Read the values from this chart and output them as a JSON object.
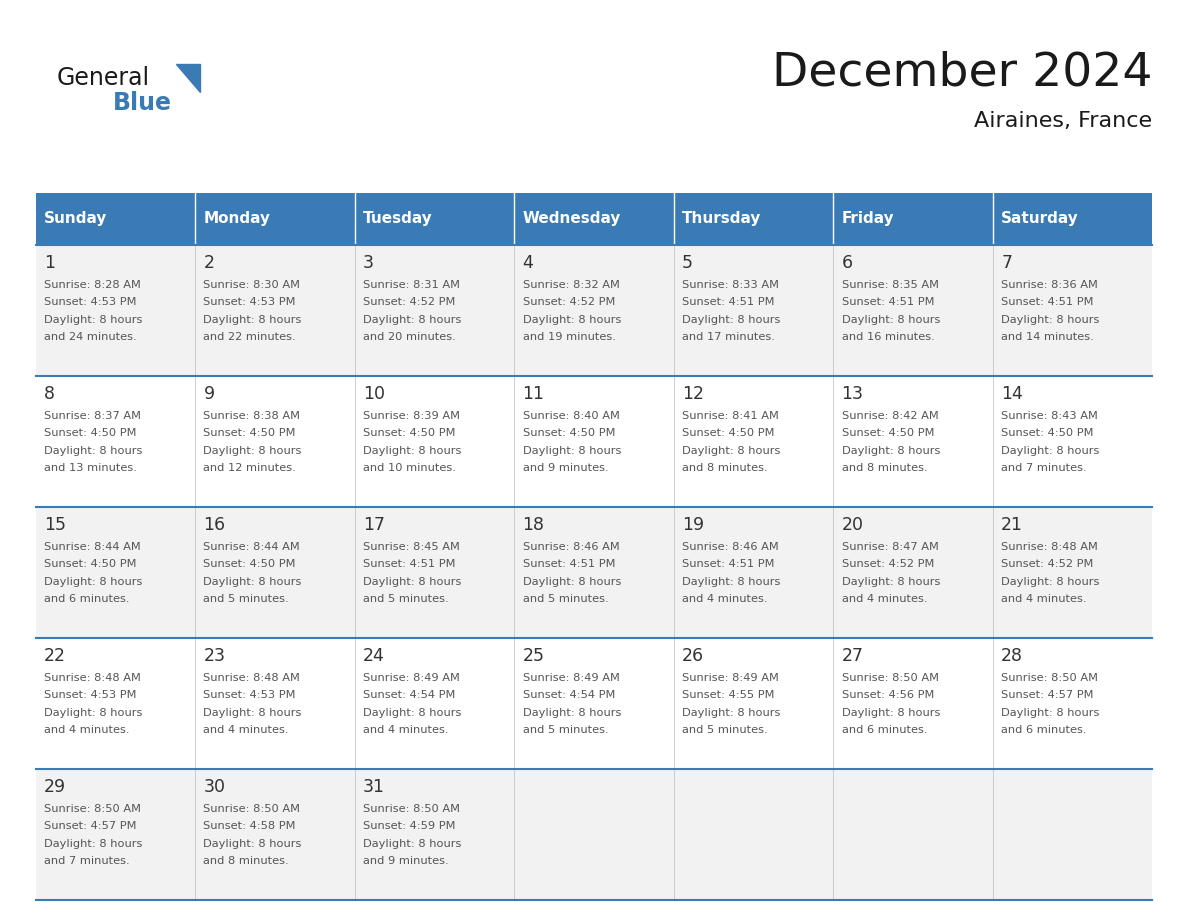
{
  "title": "December 2024",
  "subtitle": "Airaines, France",
  "days_of_week": [
    "Sunday",
    "Monday",
    "Tuesday",
    "Wednesday",
    "Thursday",
    "Friday",
    "Saturday"
  ],
  "header_bg_color": "#3a7ab5",
  "header_text_color": "#ffffff",
  "odd_row_bg": "#f2f2f2",
  "even_row_bg": "#ffffff",
  "line_color": "#3a7ab5",
  "day_num_color": "#333333",
  "cell_text_color": "#555555",
  "title_color": "#1a1a1a",
  "subtitle_color": "#1a1a1a",
  "logo_general_color": "#1a1a1a",
  "logo_blue_color": "#3a7ab5",
  "weeks": [
    {
      "days": [
        {
          "day": 1,
          "sunrise": "8:28 AM",
          "sunset": "4:53 PM",
          "daylight": "8 hours and 24 minutes."
        },
        {
          "day": 2,
          "sunrise": "8:30 AM",
          "sunset": "4:53 PM",
          "daylight": "8 hours and 22 minutes."
        },
        {
          "day": 3,
          "sunrise": "8:31 AM",
          "sunset": "4:52 PM",
          "daylight": "8 hours and 20 minutes."
        },
        {
          "day": 4,
          "sunrise": "8:32 AM",
          "sunset": "4:52 PM",
          "daylight": "8 hours and 19 minutes."
        },
        {
          "day": 5,
          "sunrise": "8:33 AM",
          "sunset": "4:51 PM",
          "daylight": "8 hours and 17 minutes."
        },
        {
          "day": 6,
          "sunrise": "8:35 AM",
          "sunset": "4:51 PM",
          "daylight": "8 hours and 16 minutes."
        },
        {
          "day": 7,
          "sunrise": "8:36 AM",
          "sunset": "4:51 PM",
          "daylight": "8 hours and 14 minutes."
        }
      ]
    },
    {
      "days": [
        {
          "day": 8,
          "sunrise": "8:37 AM",
          "sunset": "4:50 PM",
          "daylight": "8 hours and 13 minutes."
        },
        {
          "day": 9,
          "sunrise": "8:38 AM",
          "sunset": "4:50 PM",
          "daylight": "8 hours and 12 minutes."
        },
        {
          "day": 10,
          "sunrise": "8:39 AM",
          "sunset": "4:50 PM",
          "daylight": "8 hours and 10 minutes."
        },
        {
          "day": 11,
          "sunrise": "8:40 AM",
          "sunset": "4:50 PM",
          "daylight": "8 hours and 9 minutes."
        },
        {
          "day": 12,
          "sunrise": "8:41 AM",
          "sunset": "4:50 PM",
          "daylight": "8 hours and 8 minutes."
        },
        {
          "day": 13,
          "sunrise": "8:42 AM",
          "sunset": "4:50 PM",
          "daylight": "8 hours and 8 minutes."
        },
        {
          "day": 14,
          "sunrise": "8:43 AM",
          "sunset": "4:50 PM",
          "daylight": "8 hours and 7 minutes."
        }
      ]
    },
    {
      "days": [
        {
          "day": 15,
          "sunrise": "8:44 AM",
          "sunset": "4:50 PM",
          "daylight": "8 hours and 6 minutes."
        },
        {
          "day": 16,
          "sunrise": "8:44 AM",
          "sunset": "4:50 PM",
          "daylight": "8 hours and 5 minutes."
        },
        {
          "day": 17,
          "sunrise": "8:45 AM",
          "sunset": "4:51 PM",
          "daylight": "8 hours and 5 minutes."
        },
        {
          "day": 18,
          "sunrise": "8:46 AM",
          "sunset": "4:51 PM",
          "daylight": "8 hours and 5 minutes."
        },
        {
          "day": 19,
          "sunrise": "8:46 AM",
          "sunset": "4:51 PM",
          "daylight": "8 hours and 4 minutes."
        },
        {
          "day": 20,
          "sunrise": "8:47 AM",
          "sunset": "4:52 PM",
          "daylight": "8 hours and 4 minutes."
        },
        {
          "day": 21,
          "sunrise": "8:48 AM",
          "sunset": "4:52 PM",
          "daylight": "8 hours and 4 minutes."
        }
      ]
    },
    {
      "days": [
        {
          "day": 22,
          "sunrise": "8:48 AM",
          "sunset": "4:53 PM",
          "daylight": "8 hours and 4 minutes."
        },
        {
          "day": 23,
          "sunrise": "8:48 AM",
          "sunset": "4:53 PM",
          "daylight": "8 hours and 4 minutes."
        },
        {
          "day": 24,
          "sunrise": "8:49 AM",
          "sunset": "4:54 PM",
          "daylight": "8 hours and 4 minutes."
        },
        {
          "day": 25,
          "sunrise": "8:49 AM",
          "sunset": "4:54 PM",
          "daylight": "8 hours and 5 minutes."
        },
        {
          "day": 26,
          "sunrise": "8:49 AM",
          "sunset": "4:55 PM",
          "daylight": "8 hours and 5 minutes."
        },
        {
          "day": 27,
          "sunrise": "8:50 AM",
          "sunset": "4:56 PM",
          "daylight": "8 hours and 6 minutes."
        },
        {
          "day": 28,
          "sunrise": "8:50 AM",
          "sunset": "4:57 PM",
          "daylight": "8 hours and 6 minutes."
        }
      ]
    },
    {
      "days": [
        {
          "day": 29,
          "sunrise": "8:50 AM",
          "sunset": "4:57 PM",
          "daylight": "8 hours and 7 minutes."
        },
        {
          "day": 30,
          "sunrise": "8:50 AM",
          "sunset": "4:58 PM",
          "daylight": "8 hours and 8 minutes."
        },
        {
          "day": 31,
          "sunrise": "8:50 AM",
          "sunset": "4:59 PM",
          "daylight": "8 hours and 9 minutes."
        },
        null,
        null,
        null,
        null
      ]
    }
  ]
}
